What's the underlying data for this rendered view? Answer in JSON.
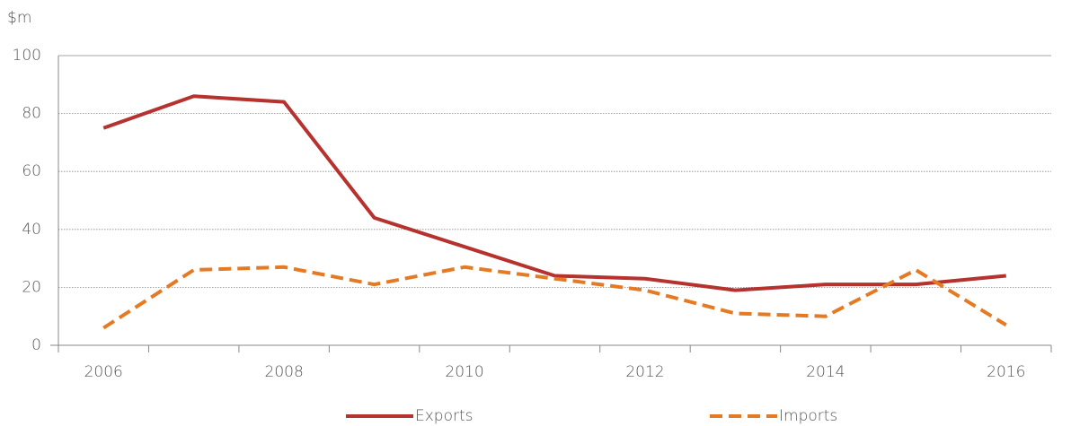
{
  "chart_data": {
    "type": "line",
    "y_label": "$m",
    "categories": [
      "2006",
      null,
      "2008",
      null,
      "2010",
      null,
      "2012",
      null,
      "2014",
      null,
      "2016"
    ],
    "series": [
      {
        "name": "Exports",
        "color": "#b5322e",
        "dash": false,
        "values": [
          75,
          86,
          84,
          44,
          34,
          24,
          23,
          19,
          21,
          21,
          24
        ]
      },
      {
        "name": "Imports",
        "color": "#e57a25",
        "dash": true,
        "values": [
          6,
          26,
          27,
          21,
          27,
          23,
          19,
          11,
          10,
          26,
          7
        ]
      }
    ],
    "ylim": [
      0,
      100
    ],
    "yticks": [
      0,
      20,
      40,
      60,
      80,
      100
    ],
    "grid": true
  }
}
